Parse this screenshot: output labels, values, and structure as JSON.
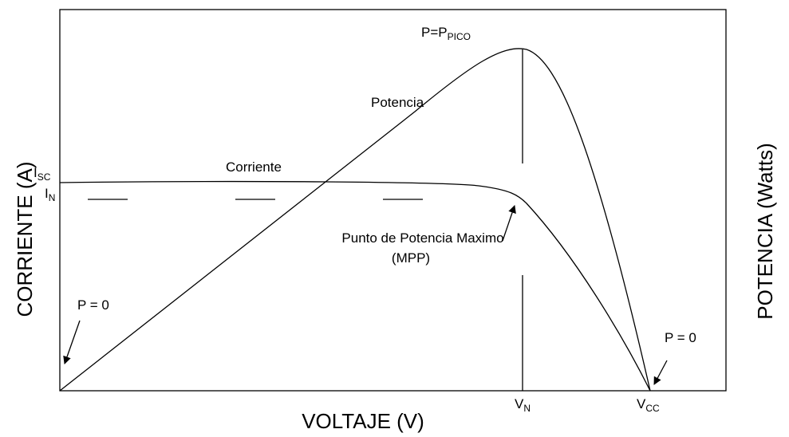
{
  "labels": {
    "peak": {
      "main": "P=P",
      "sub": "PICO"
    },
    "power_curve": "Potencia",
    "current_curve": "Corriente",
    "isc": {
      "main": "I",
      "sub": "SC"
    },
    "in": {
      "main": "I",
      "sub": "N"
    },
    "mpp_line1": "Punto de Potencia Maximo",
    "mpp_line2": "(MPP)",
    "p0_left": "P = 0",
    "p0_right": "P = 0",
    "vn": {
      "main": "V",
      "sub": "N"
    },
    "vcc": {
      "main": "V",
      "sub": "CC"
    },
    "y_left": "CORRIENTE (A)",
    "y_right": "POTENCIA (Watts)",
    "x_axis": "VOLTAJE (V)"
  }
}
